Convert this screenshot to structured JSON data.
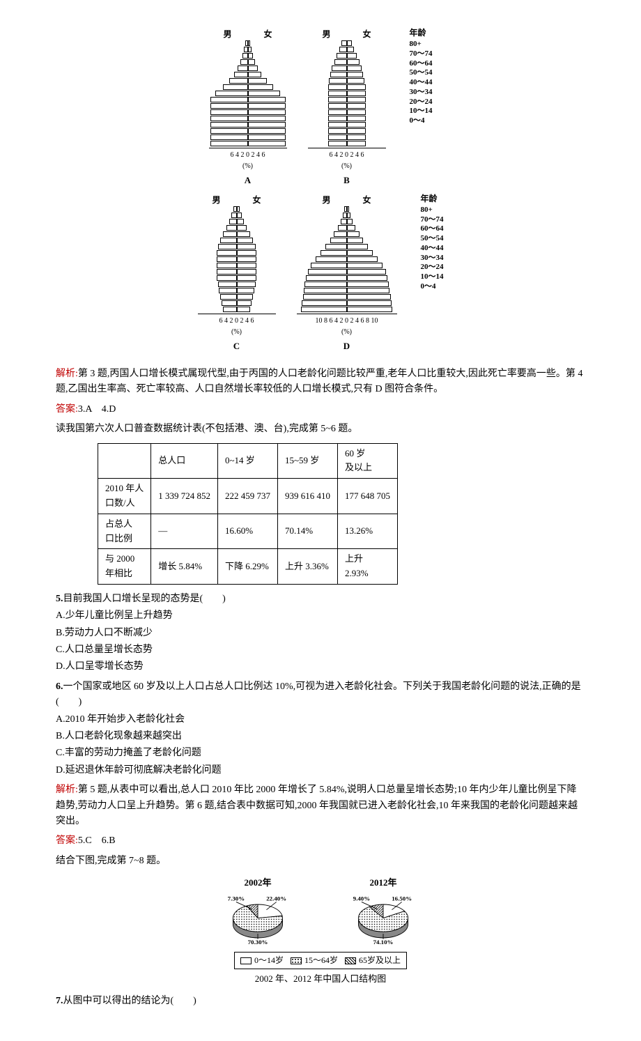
{
  "pyramids": {
    "age_title": "年龄",
    "age_labels": [
      "80+",
      "70～74",
      "60～64",
      "50～54",
      "40～44",
      "30～34",
      "20～24",
      "10～14",
      "0～4"
    ],
    "gender_m": "男",
    "gender_f": "女",
    "axis_unit": "(%)",
    "charts": {
      "A": {
        "label": "A",
        "axis": "6 4 2 0 2 4 6",
        "max": 6,
        "bars_m": [
          0.4,
          0.6,
          0.8,
          1.2,
          1.6,
          2.2,
          3.0,
          4.0,
          5.2,
          6.0,
          6.0,
          6.0,
          6.0,
          6.0,
          6.0,
          6.0,
          6.0
        ],
        "bars_f": [
          0.4,
          0.6,
          0.8,
          1.2,
          1.6,
          2.2,
          3.0,
          4.0,
          5.2,
          6.0,
          6.0,
          6.0,
          6.0,
          6.0,
          6.0,
          6.0,
          6.0
        ]
      },
      "B": {
        "label": "B",
        "axis": "6 4 2 0 2 4 6",
        "max": 6,
        "bars_m": [
          0.8,
          1.2,
          1.6,
          2.0,
          2.4,
          2.6,
          2.8,
          3.0,
          3.0,
          3.0,
          3.0,
          3.0,
          3.0,
          3.0,
          3.0,
          3.0,
          3.0
        ],
        "bars_f": [
          0.8,
          1.2,
          1.6,
          2.0,
          2.4,
          2.6,
          2.8,
          3.0,
          3.0,
          3.0,
          3.0,
          3.0,
          3.0,
          3.0,
          3.0,
          3.0,
          3.0
        ]
      },
      "C": {
        "label": "C",
        "axis": "6 4 2 0 2 4 6",
        "max": 6,
        "bars_m": [
          0.5,
          0.8,
          1.2,
          1.6,
          2.2,
          2.6,
          3.0,
          3.2,
          3.2,
          3.2,
          3.2,
          3.2,
          3.0,
          2.8,
          2.6,
          2.4,
          2.2
        ],
        "bars_f": [
          0.5,
          0.8,
          1.2,
          1.6,
          2.2,
          2.6,
          3.0,
          3.2,
          3.2,
          3.2,
          3.2,
          3.2,
          3.0,
          2.8,
          2.6,
          2.4,
          2.2
        ]
      },
      "D": {
        "label": "D",
        "axis": "10 8 6 4 2 0 2 4 6 8 10",
        "max": 10,
        "bars_m": [
          0.5,
          0.8,
          1.2,
          1.8,
          2.6,
          3.4,
          4.4,
          5.4,
          6.4,
          7.4,
          8.0,
          8.4,
          8.6,
          8.8,
          9.0,
          9.2,
          9.4
        ],
        "bars_f": [
          0.5,
          0.8,
          1.2,
          1.8,
          2.6,
          3.4,
          4.4,
          5.4,
          6.4,
          7.4,
          8.0,
          8.4,
          8.6,
          8.8,
          9.0,
          9.2,
          9.4
        ]
      }
    }
  },
  "analysis34": "第 3 题,丙国人口增长模式属现代型,由于丙国的人口老龄化问题比较严重,老年人口比重较大,因此死亡率要高一些。第 4 题,乙国出生率高、死亡率较高、人口自然增长率较低的人口增长模式,只有 D 图符合条件。",
  "analysis_label": "解析:",
  "answer_label": "答案:",
  "answer34": "3.A　4.D",
  "table_intro": "读我国第六次人口普查数据统计表(不包括港、澳、台),完成第 5~6 题。",
  "table": {
    "headers": [
      "",
      "总人口",
      "0~14 岁",
      "15~59 岁",
      "60 岁\n及以上"
    ],
    "rows": [
      [
        "2010 年人\n口数/人",
        "1 339 724 852",
        "222 459 737",
        "939 616 410",
        "177 648 705"
      ],
      [
        "占总人\n口比例",
        "—",
        "16.60%",
        "70.14%",
        "13.26%"
      ],
      [
        "与 2000\n年相比",
        "增长 5.84%",
        "下降 6.29%",
        "上升 3.36%",
        "上升\n2.93%"
      ]
    ]
  },
  "q5": {
    "num": "5.",
    "stem": "目前我国人口增长呈现的态势是(　　)",
    "A": "A.少年儿童比例呈上升趋势",
    "B": "B.劳动力人口不断减少",
    "C": "C.人口总量呈增长态势",
    "D": "D.人口呈零增长态势"
  },
  "q6": {
    "num": "6.",
    "stem": "一个国家或地区 60 岁及以上人口占总人口比例达 10%,可视为进入老龄化社会。下列关于我国老龄化问题的说法,正确的是(　　)",
    "A": "A.2010 年开始步入老龄化社会",
    "B": "B.人口老龄化现象越来越突出",
    "C": "C.丰富的劳动力掩盖了老龄化问题",
    "D": "D.延迟退休年龄可彻底解决老龄化问题"
  },
  "analysis56": "第 5 题,从表中可以看出,总人口 2010 年比 2000 年增长了 5.84%,说明人口总量呈增长态势;10 年内少年儿童比例呈下降趋势,劳动力人口呈上升趋势。第 6 题,结合表中数据可知,2000 年我国就已进入老龄化社会,10 年来我国的老龄化问题越来越突出。",
  "answer56": "5.C　6.B",
  "pie_intro": "结合下图,完成第 7~8 题。",
  "pies": {
    "pie2002": {
      "year": "2002年",
      "seg1": {
        "label": "22.40%",
        "value": 22.4,
        "fill": "#ffffff"
      },
      "seg2": {
        "label": "70.30%",
        "value": 70.3,
        "fill": "dots"
      },
      "seg3": {
        "label": "7.30%",
        "value": 7.3,
        "fill": "hatch"
      }
    },
    "pie2012": {
      "year": "2012年",
      "seg1": {
        "label": "16.50%",
        "value": 16.5,
        "fill": "#ffffff"
      },
      "seg2": {
        "label": "74.10%",
        "value": 74.1,
        "fill": "dots"
      },
      "seg3": {
        "label": "9.40%",
        "value": 9.4,
        "fill": "hatch"
      }
    },
    "legend": [
      "0～14岁",
      "15～64岁",
      "65岁及以上"
    ],
    "caption": "2002 年、2012 年中国人口结构图"
  },
  "q7": {
    "num": "7.",
    "stem": "从图中可以得出的结论为(　　)"
  }
}
